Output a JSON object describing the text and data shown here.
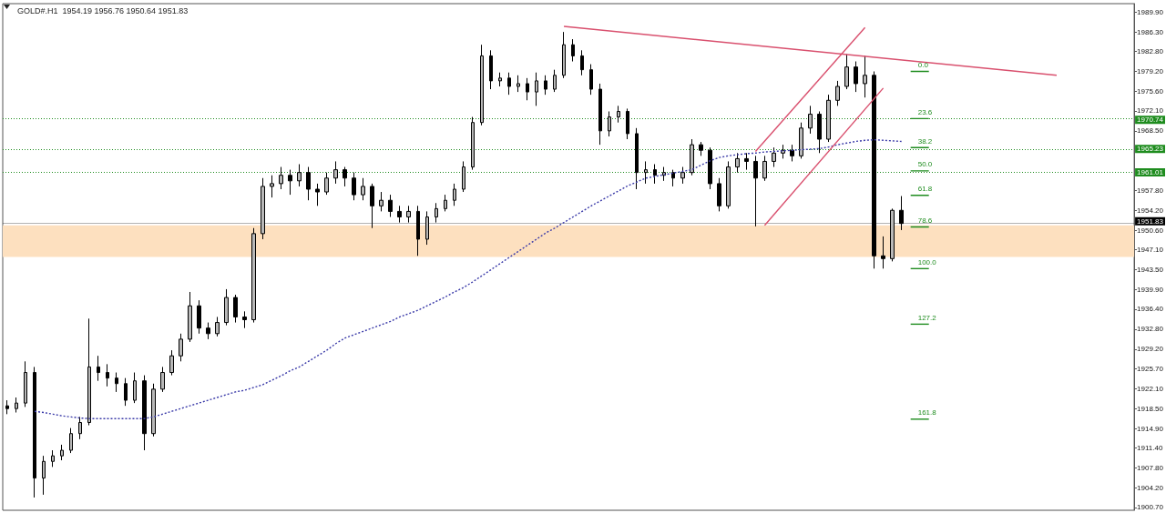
{
  "chart_data": {
    "type": "candlestick",
    "title": "GOLD#.H1  1954.19 1956.76 1950.64 1951.83",
    "categories": [
      null,
      null,
      null,
      null,
      null,
      null,
      null,
      null,
      null,
      null,
      null,
      null,
      null,
      null,
      null,
      null,
      null,
      null,
      null,
      null,
      null,
      null,
      null,
      null,
      null,
      null,
      null,
      null,
      null,
      null,
      null,
      null,
      null,
      null,
      null,
      null,
      null,
      null,
      null,
      null,
      null,
      null,
      null,
      null,
      null,
      null,
      null,
      null,
      null,
      null,
      null,
      null,
      null,
      null,
      null,
      null,
      null,
      null,
      null,
      null,
      null,
      null,
      null,
      null,
      null,
      null,
      null,
      null,
      null,
      null,
      null,
      null,
      null,
      null,
      null,
      null,
      null,
      null,
      null,
      null,
      null,
      null,
      null,
      null,
      null,
      null,
      null,
      null,
      null,
      null,
      null,
      null,
      null,
      null,
      null,
      null,
      null,
      null,
      null,
      null,
      null,
      null,
      null,
      null,
      null,
      null,
      null,
      null,
      null,
      null,
      null,
      null,
      null,
      null,
      null,
      null,
      null,
      null,
      null,
      null,
      null,
      null,
      null,
      null
    ],
    "ohlc": [
      [
        1919,
        1920,
        1917.5,
        1918.5
      ],
      [
        1918.5,
        1920.5,
        1917.8,
        1919.5
      ],
      [
        1919.5,
        1927,
        1918.8,
        1925
      ],
      [
        1925,
        1926,
        1902.5,
        1906
      ],
      [
        1906,
        1910,
        1903,
        1909
      ],
      [
        1909,
        1911,
        1908,
        1910
      ],
      [
        1910,
        1912,
        1909.2,
        1911
      ],
      [
        1911,
        1915,
        1910.5,
        1914
      ],
      [
        1914,
        1917,
        1913,
        1916
      ],
      [
        1916,
        1934.7,
        1915.5,
        1926
      ],
      [
        1926,
        1928,
        1923.5,
        1925
      ],
      [
        1925,
        1926.5,
        1922.5,
        1924
      ],
      [
        1924,
        1925,
        1921.5,
        1923
      ],
      [
        1923,
        1924,
        1919,
        1920
      ],
      [
        1920,
        1925,
        1919.5,
        1923.5
      ],
      [
        1923.5,
        1924.5,
        1911,
        1914
      ],
      [
        1914,
        1923,
        1913.5,
        1922
      ],
      [
        1922,
        1926,
        1921.5,
        1925
      ],
      [
        1925,
        1929,
        1924.5,
        1928
      ],
      [
        1928,
        1932,
        1927,
        1931
      ],
      [
        1931,
        1939.5,
        1930.5,
        1937
      ],
      [
        1937,
        1938,
        1932,
        1933
      ],
      [
        1933,
        1934,
        1931,
        1932
      ],
      [
        1932,
        1935,
        1931.5,
        1934
      ],
      [
        1934,
        1940,
        1933.5,
        1938.5
      ],
      [
        1938.5,
        1939,
        1934,
        1935
      ],
      [
        1935,
        1936,
        1933,
        1934.5
      ],
      [
        1934.5,
        1951,
        1934,
        1950
      ],
      [
        1950,
        1960,
        1949,
        1958.5
      ],
      [
        1958.5,
        1960.5,
        1956.5,
        1959
      ],
      [
        1959,
        1962,
        1958,
        1960.5
      ],
      [
        1960.5,
        1961.5,
        1957,
        1959.5
      ],
      [
        1959.5,
        1962.5,
        1958.5,
        1961
      ],
      [
        1961,
        1962,
        1956,
        1958
      ],
      [
        1958,
        1959,
        1955,
        1957.5
      ],
      [
        1957.5,
        1961,
        1957,
        1960
      ],
      [
        1960,
        1963,
        1959,
        1961.5
      ],
      [
        1961.5,
        1962,
        1958.5,
        1960
      ],
      [
        1960,
        1961,
        1956,
        1957
      ],
      [
        1957,
        1960,
        1956,
        1958.5
      ],
      [
        1958.5,
        1959,
        1951,
        1955
      ],
      [
        1955,
        1957.5,
        1954,
        1956
      ],
      [
        1956,
        1957,
        1953,
        1954
      ],
      [
        1954,
        1955,
        1952,
        1953
      ],
      [
        1953,
        1955,
        1952,
        1954
      ],
      [
        1954,
        1955,
        1946,
        1949
      ],
      [
        1949,
        1954,
        1948,
        1953
      ],
      [
        1953,
        1955.5,
        1952,
        1954.5
      ],
      [
        1954.5,
        1957,
        1954,
        1956
      ],
      [
        1956,
        1959,
        1955,
        1958
      ],
      [
        1958,
        1963,
        1957.5,
        1962
      ],
      [
        1962,
        1971,
        1961.5,
        1970
      ],
      [
        1970,
        1984,
        1969.5,
        1982
      ],
      [
        1982,
        1983,
        1976,
        1977.5
      ],
      [
        1977.5,
        1979,
        1976.5,
        1978
      ],
      [
        1978,
        1979,
        1975,
        1976.5
      ],
      [
        1976.5,
        1978.5,
        1975.5,
        1977
      ],
      [
        1977,
        1978,
        1974,
        1975.5
      ],
      [
        1975.5,
        1979,
        1973,
        1977.5
      ],
      [
        1977.5,
        1978.5,
        1975,
        1976
      ],
      [
        1976,
        1979.5,
        1975.5,
        1978.5
      ],
      [
        1978.5,
        1986.3,
        1978,
        1984
      ],
      [
        1984,
        1985,
        1981,
        1982
      ],
      [
        1982,
        1983,
        1978.5,
        1979.5
      ],
      [
        1979.5,
        1980.5,
        1975,
        1976
      ],
      [
        1976,
        1977,
        1966,
        1968.5
      ],
      [
        1968.5,
        1972,
        1967.5,
        1971
      ],
      [
        1971,
        1973,
        1970,
        1972
      ],
      [
        1972,
        1972.5,
        1967,
        1968
      ],
      [
        1968,
        1969,
        1958,
        1961
      ],
      [
        1961,
        1963,
        1959,
        1961.5
      ],
      [
        1961.5,
        1962.5,
        1959,
        1960.5
      ],
      [
        1960.5,
        1962,
        1959.5,
        1961
      ],
      [
        1961,
        1961.5,
        1958.5,
        1960
      ],
      [
        1960,
        1962,
        1959,
        1961
      ],
      [
        1961,
        1967,
        1960.5,
        1966
      ],
      [
        1966,
        1966.5,
        1964,
        1965
      ],
      [
        1965,
        1965.5,
        1958,
        1959
      ],
      [
        1959,
        1960,
        1954,
        1955
      ],
      [
        1955,
        1963,
        1954.5,
        1962
      ],
      [
        1962,
        1964.5,
        1961,
        1963.5
      ],
      [
        1963.5,
        1964.5,
        1961.5,
        1963
      ],
      [
        1963,
        1964,
        1951.3,
        1960
      ],
      [
        1960,
        1964,
        1959.5,
        1963
      ],
      [
        1963,
        1965.5,
        1962,
        1964.5
      ],
      [
        1964.5,
        1966,
        1963.5,
        1965
      ],
      [
        1965,
        1966,
        1963,
        1964
      ],
      [
        1964,
        1970,
        1963.5,
        1969
      ],
      [
        1969,
        1973,
        1968,
        1971.5
      ],
      [
        1971.5,
        1972,
        1964.5,
        1967
      ],
      [
        1967,
        1975,
        1966.5,
        1974
      ],
      [
        1974,
        1977.5,
        1973,
        1976.5
      ],
      [
        1976.5,
        1982.3,
        1976,
        1980
      ],
      [
        1980,
        1981,
        1975.5,
        1977
      ],
      [
        1977,
        1982,
        1974.5,
        1978.5
      ],
      [
        1978.5,
        1979.2,
        1943.7,
        1946
      ],
      [
        1946,
        1949.5,
        1943.7,
        1945.5
      ],
      [
        1945.5,
        1954.5,
        1945,
        1954.19
      ],
      [
        1954.19,
        1956.76,
        1950.64,
        1951.83
      ],
      null,
      null,
      null,
      null,
      null,
      null,
      null,
      null,
      null,
      null,
      null,
      null,
      null,
      null,
      null,
      null,
      null,
      null,
      null,
      null,
      null,
      null,
      null,
      null,
      null
    ],
    "series": [
      {
        "type": "line",
        "color": "#3a3aa8",
        "line_style": "dotted",
        "values": [
          null,
          null,
          null,
          1918.0,
          1917.8,
          1917.5,
          1917.2,
          1917.0,
          1916.8,
          1916.7,
          1916.7,
          1916.7,
          1916.7,
          1916.7,
          1916.7,
          1916.7,
          1917.0,
          1917.5,
          1918.0,
          1918.5,
          1919.0,
          1919.5,
          1920.0,
          1920.5,
          1921.0,
          1921.5,
          1921.8,
          1922.3,
          1922.8,
          1923.6,
          1924.4,
          1925.3,
          1926.0,
          1927.0,
          1928.0,
          1929.0,
          1930.2,
          1931.2,
          1931.8,
          1932.4,
          1933.0,
          1933.6,
          1934.2,
          1935.0,
          1935.6,
          1936.2,
          1937.0,
          1937.8,
          1938.6,
          1939.5,
          1940.3,
          1941.3,
          1942.4,
          1943.5,
          1944.6,
          1945.7,
          1946.8,
          1947.9,
          1949.0,
          1950.1,
          1951.0,
          1952.0,
          1953.0,
          1954.0,
          1955.0,
          1955.9,
          1956.8,
          1957.7,
          1958.6,
          1959.3,
          1960.0,
          1960.3,
          1960.6,
          1960.9,
          1961.2,
          1961.5,
          1962.3,
          1963.1,
          1963.7,
          1964.0,
          1964.2,
          1964.4,
          1964.5,
          1964.7,
          1964.8,
          1964.9,
          1965.0,
          1965.1,
          1965.2,
          1965.3,
          1965.6,
          1966.0,
          1966.3,
          1966.6,
          1966.8,
          1966.9,
          1966.8,
          1966.7,
          1966.6,
          null,
          null,
          null,
          null,
          null,
          null,
          null,
          null,
          null,
          null,
          null,
          null,
          null,
          null,
          null,
          null,
          null,
          null,
          null,
          null,
          null,
          null,
          null,
          null,
          null
        ]
      },
      {
        "type": "line",
        "color": "#d9506e",
        "line_style": "solid",
        "values": [
          null,
          null,
          null,
          null,
          null,
          null,
          null,
          null,
          null,
          null,
          null,
          null,
          null,
          null,
          null,
          null,
          null,
          null,
          null,
          null,
          null,
          null,
          null,
          null,
          null,
          null,
          null,
          null,
          null,
          null,
          null,
          null,
          null,
          null,
          null,
          null,
          null,
          null,
          null,
          null,
          null,
          null,
          null,
          null,
          null,
          null,
          null,
          null,
          null,
          null,
          null,
          null,
          null,
          null,
          null,
          null,
          null,
          null,
          null,
          null,
          null,
          1987.3,
          null,
          null,
          null,
          null,
          null,
          null,
          null,
          null,
          null,
          null,
          null,
          null,
          null,
          null,
          null,
          null,
          null,
          null,
          null,
          null,
          null,
          null,
          null,
          null,
          null,
          null,
          null,
          null,
          null,
          null,
          null,
          null,
          null,
          null,
          null,
          null,
          null,
          null,
          null,
          null,
          null,
          null,
          null,
          null,
          null,
          null,
          null,
          null,
          null,
          null,
          null,
          null,
          null,
          1978.5,
          null,
          null,
          null,
          null,
          null,
          null,
          null,
          null
        ]
      },
      {
        "type": "line",
        "color": "#d9506e",
        "line_style": "solid",
        "values": [
          null,
          null,
          null,
          null,
          null,
          null,
          null,
          null,
          null,
          null,
          null,
          null,
          null,
          null,
          null,
          null,
          null,
          null,
          null,
          null,
          null,
          null,
          null,
          null,
          null,
          null,
          null,
          null,
          null,
          null,
          null,
          null,
          null,
          null,
          null,
          null,
          null,
          null,
          null,
          null,
          null,
          null,
          null,
          null,
          null,
          null,
          null,
          null,
          null,
          null,
          null,
          null,
          null,
          null,
          null,
          null,
          null,
          null,
          null,
          null,
          null,
          null,
          null,
          null,
          null,
          null,
          null,
          null,
          null,
          null,
          null,
          null,
          null,
          null,
          null,
          null,
          null,
          null,
          null,
          null,
          null,
          null,
          1964.8,
          null,
          null,
          null,
          null,
          null,
          null,
          null,
          null,
          null,
          null,
          null,
          1987.1,
          null,
          null,
          null,
          null,
          null,
          null,
          null,
          null,
          null,
          null,
          null,
          null,
          null,
          null,
          null,
          null,
          null,
          null,
          null,
          null,
          null,
          null,
          null,
          null,
          null,
          null,
          null,
          null,
          null
        ]
      },
      {
        "type": "line",
        "color": "#d9506e",
        "line_style": "solid",
        "values": [
          null,
          null,
          null,
          null,
          null,
          null,
          null,
          null,
          null,
          null,
          null,
          null,
          null,
          null,
          null,
          null,
          null,
          null,
          null,
          null,
          null,
          null,
          null,
          null,
          null,
          null,
          null,
          null,
          null,
          null,
          null,
          null,
          null,
          null,
          null,
          null,
          null,
          null,
          null,
          null,
          null,
          null,
          null,
          null,
          null,
          null,
          null,
          null,
          null,
          null,
          null,
          null,
          null,
          null,
          null,
          null,
          null,
          null,
          null,
          null,
          null,
          null,
          null,
          null,
          null,
          null,
          null,
          null,
          null,
          null,
          null,
          null,
          null,
          null,
          null,
          null,
          null,
          null,
          null,
          null,
          null,
          null,
          null,
          1951.5,
          null,
          null,
          null,
          null,
          null,
          null,
          null,
          null,
          null,
          null,
          null,
          null,
          1976.2,
          null,
          null,
          null,
          null,
          null,
          null,
          null,
          null,
          null,
          null,
          null,
          null,
          null,
          null,
          null,
          null,
          null,
          null,
          null,
          null,
          null,
          null,
          null,
          null,
          null,
          null,
          null
        ]
      },
      {
        "type": "line",
        "name": "0.0",
        "color": "#1e8c1e",
        "line_style": "solid",
        "values": [
          null,
          null,
          null,
          null,
          null,
          null,
          null,
          null,
          null,
          null,
          null,
          null,
          null,
          null,
          null,
          null,
          null,
          null,
          null,
          null,
          null,
          null,
          null,
          null,
          null,
          null,
          null,
          null,
          null,
          null,
          null,
          null,
          null,
          null,
          null,
          null,
          null,
          null,
          null,
          null,
          null,
          null,
          null,
          null,
          null,
          null,
          null,
          null,
          null,
          null,
          null,
          null,
          null,
          null,
          null,
          null,
          null,
          null,
          null,
          null,
          null,
          null,
          null,
          null,
          null,
          null,
          null,
          null,
          null,
          null,
          null,
          null,
          null,
          null,
          null,
          null,
          null,
          null,
          null,
          null,
          null,
          null,
          null,
          null,
          null,
          null,
          null,
          null,
          null,
          null,
          null,
          null,
          null,
          null,
          null,
          null,
          null,
          null,
          null,
          1979.2,
          null,
          1979.2,
          null,
          null,
          null,
          null,
          null,
          null,
          null,
          null,
          null,
          null,
          null,
          null,
          null,
          null,
          null,
          null,
          null,
          null,
          null,
          null,
          null,
          null
        ]
      },
      {
        "type": "line",
        "name": "23.6",
        "color": "#1e8c1e",
        "line_style": "solid",
        "values": [
          null,
          null,
          null,
          null,
          null,
          null,
          null,
          null,
          null,
          null,
          null,
          null,
          null,
          null,
          null,
          null,
          null,
          null,
          null,
          null,
          null,
          null,
          null,
          null,
          null,
          null,
          null,
          null,
          null,
          null,
          null,
          null,
          null,
          null,
          null,
          null,
          null,
          null,
          null,
          null,
          null,
          null,
          null,
          null,
          null,
          null,
          null,
          null,
          null,
          null,
          null,
          null,
          null,
          null,
          null,
          null,
          null,
          null,
          null,
          null,
          null,
          null,
          null,
          null,
          null,
          null,
          null,
          null,
          null,
          null,
          null,
          null,
          null,
          null,
          null,
          null,
          null,
          null,
          null,
          null,
          null,
          null,
          null,
          null,
          null,
          null,
          null,
          null,
          null,
          null,
          null,
          null,
          null,
          null,
          null,
          null,
          null,
          null,
          null,
          1970.7,
          null,
          1970.7,
          null,
          null,
          null,
          null,
          null,
          null,
          null,
          null,
          null,
          null,
          null,
          null,
          null,
          null,
          null,
          null,
          null,
          null,
          null,
          null,
          null,
          null
        ]
      },
      {
        "type": "line",
        "name": "38.2",
        "color": "#1e8c1e",
        "line_style": "solid",
        "values": [
          null,
          null,
          null,
          null,
          null,
          null,
          null,
          null,
          null,
          null,
          null,
          null,
          null,
          null,
          null,
          null,
          null,
          null,
          null,
          null,
          null,
          null,
          null,
          null,
          null,
          null,
          null,
          null,
          null,
          null,
          null,
          null,
          null,
          null,
          null,
          null,
          null,
          null,
          null,
          null,
          null,
          null,
          null,
          null,
          null,
          null,
          null,
          null,
          null,
          null,
          null,
          null,
          null,
          null,
          null,
          null,
          null,
          null,
          null,
          null,
          null,
          null,
          null,
          null,
          null,
          null,
          null,
          null,
          null,
          null,
          null,
          null,
          null,
          null,
          null,
          null,
          null,
          null,
          null,
          null,
          null,
          null,
          null,
          null,
          null,
          null,
          null,
          null,
          null,
          null,
          null,
          null,
          null,
          null,
          null,
          null,
          null,
          null,
          null,
          1965.5,
          null,
          1965.5,
          null,
          null,
          null,
          null,
          null,
          null,
          null,
          null,
          null,
          null,
          null,
          null,
          null,
          null,
          null,
          null,
          null,
          null,
          null,
          null,
          null,
          null
        ]
      },
      {
        "type": "line",
        "name": "50.0",
        "color": "#1e8c1e",
        "line_style": "solid",
        "values": [
          null,
          null,
          null,
          null,
          null,
          null,
          null,
          null,
          null,
          null,
          null,
          null,
          null,
          null,
          null,
          null,
          null,
          null,
          null,
          null,
          null,
          null,
          null,
          null,
          null,
          null,
          null,
          null,
          null,
          null,
          null,
          null,
          null,
          null,
          null,
          null,
          null,
          null,
          null,
          null,
          null,
          null,
          null,
          null,
          null,
          null,
          null,
          null,
          null,
          null,
          null,
          null,
          null,
          null,
          null,
          null,
          null,
          null,
          null,
          null,
          null,
          null,
          null,
          null,
          null,
          null,
          null,
          null,
          null,
          null,
          null,
          null,
          null,
          null,
          null,
          null,
          null,
          null,
          null,
          null,
          null,
          null,
          null,
          null,
          null,
          null,
          null,
          null,
          null,
          null,
          null,
          null,
          null,
          null,
          null,
          null,
          null,
          null,
          null,
          1961.3,
          null,
          1961.3,
          null,
          null,
          null,
          null,
          null,
          null,
          null,
          null,
          null,
          null,
          null,
          null,
          null,
          null,
          null,
          null,
          null,
          null,
          null,
          null,
          null,
          null
        ]
      },
      {
        "type": "line",
        "name": "61.8",
        "color": "#1e8c1e",
        "line_style": "solid",
        "values": [
          null,
          null,
          null,
          null,
          null,
          null,
          null,
          null,
          null,
          null,
          null,
          null,
          null,
          null,
          null,
          null,
          null,
          null,
          null,
          null,
          null,
          null,
          null,
          null,
          null,
          null,
          null,
          null,
          null,
          null,
          null,
          null,
          null,
          null,
          null,
          null,
          null,
          null,
          null,
          null,
          null,
          null,
          null,
          null,
          null,
          null,
          null,
          null,
          null,
          null,
          null,
          null,
          null,
          null,
          null,
          null,
          null,
          null,
          null,
          null,
          null,
          null,
          null,
          null,
          null,
          null,
          null,
          null,
          null,
          null,
          null,
          null,
          null,
          null,
          null,
          null,
          null,
          null,
          null,
          null,
          null,
          null,
          null,
          null,
          null,
          null,
          null,
          null,
          null,
          null,
          null,
          null,
          null,
          null,
          null,
          null,
          null,
          null,
          null,
          1956.9,
          null,
          1956.9,
          null,
          null,
          null,
          null,
          null,
          null,
          null,
          null,
          null,
          null,
          null,
          null,
          null,
          null,
          null,
          null,
          null,
          null,
          null,
          null,
          null,
          null
        ]
      },
      {
        "type": "line",
        "name": "78.6",
        "color": "#1e8c1e",
        "line_style": "solid",
        "values": [
          null,
          null,
          null,
          null,
          null,
          null,
          null,
          null,
          null,
          null,
          null,
          null,
          null,
          null,
          null,
          null,
          null,
          null,
          null,
          null,
          null,
          null,
          null,
          null,
          null,
          null,
          null,
          null,
          null,
          null,
          null,
          null,
          null,
          null,
          null,
          null,
          null,
          null,
          null,
          null,
          null,
          null,
          null,
          null,
          null,
          null,
          null,
          null,
          null,
          null,
          null,
          null,
          null,
          null,
          null,
          null,
          null,
          null,
          null,
          null,
          null,
          null,
          null,
          null,
          null,
          null,
          null,
          null,
          null,
          null,
          null,
          null,
          null,
          null,
          null,
          null,
          null,
          null,
          null,
          null,
          null,
          null,
          null,
          null,
          null,
          null,
          null,
          null,
          null,
          null,
          null,
          null,
          null,
          null,
          null,
          null,
          null,
          null,
          null,
          1951.2,
          null,
          1951.2,
          null,
          null,
          null,
          null,
          null,
          null,
          null,
          null,
          null,
          null,
          null,
          null,
          null,
          null,
          null,
          null,
          null,
          null,
          null,
          null,
          null,
          null
        ]
      },
      {
        "type": "line",
        "name": "100.0",
        "color": "#1e8c1e",
        "line_style": "solid",
        "values": [
          null,
          null,
          null,
          null,
          null,
          null,
          null,
          null,
          null,
          null,
          null,
          null,
          null,
          null,
          null,
          null,
          null,
          null,
          null,
          null,
          null,
          null,
          null,
          null,
          null,
          null,
          null,
          null,
          null,
          null,
          null,
          null,
          null,
          null,
          null,
          null,
          null,
          null,
          null,
          null,
          null,
          null,
          null,
          null,
          null,
          null,
          null,
          null,
          null,
          null,
          null,
          null,
          null,
          null,
          null,
          null,
          null,
          null,
          null,
          null,
          null,
          null,
          null,
          null,
          null,
          null,
          null,
          null,
          null,
          null,
          null,
          null,
          null,
          null,
          null,
          null,
          null,
          null,
          null,
          null,
          null,
          null,
          null,
          null,
          null,
          null,
          null,
          null,
          null,
          null,
          null,
          null,
          null,
          null,
          null,
          null,
          null,
          null,
          null,
          1943.7,
          null,
          1943.7,
          null,
          null,
          null,
          null,
          null,
          null,
          null,
          null,
          null,
          null,
          null,
          null,
          null,
          null,
          null,
          null,
          null,
          null,
          null,
          null,
          null,
          null
        ]
      },
      {
        "type": "line",
        "name": "127.2",
        "color": "#1e8c1e",
        "line_style": "solid",
        "values": [
          null,
          null,
          null,
          null,
          null,
          null,
          null,
          null,
          null,
          null,
          null,
          null,
          null,
          null,
          null,
          null,
          null,
          null,
          null,
          null,
          null,
          null,
          null,
          null,
          null,
          null,
          null,
          null,
          null,
          null,
          null,
          null,
          null,
          null,
          null,
          null,
          null,
          null,
          null,
          null,
          null,
          null,
          null,
          null,
          null,
          null,
          null,
          null,
          null,
          null,
          null,
          null,
          null,
          null,
          null,
          null,
          null,
          null,
          null,
          null,
          null,
          null,
          null,
          null,
          null,
          null,
          null,
          null,
          null,
          null,
          null,
          null,
          null,
          null,
          null,
          null,
          null,
          null,
          null,
          null,
          null,
          null,
          null,
          null,
          null,
          null,
          null,
          null,
          null,
          null,
          null,
          null,
          null,
          null,
          null,
          null,
          null,
          null,
          null,
          1933.7,
          null,
          1933.7,
          null,
          null,
          null,
          null,
          null,
          null,
          null,
          null,
          null,
          null,
          null,
          null,
          null,
          null,
          null,
          null,
          null,
          null,
          null,
          null,
          null,
          null
        ]
      },
      {
        "type": "line",
        "name": "161.8",
        "color": "#1e8c1e",
        "line_style": "solid",
        "values": [
          null,
          null,
          null,
          null,
          null,
          null,
          null,
          null,
          null,
          null,
          null,
          null,
          null,
          null,
          null,
          null,
          null,
          null,
          null,
          null,
          null,
          null,
          null,
          null,
          null,
          null,
          null,
          null,
          null,
          null,
          null,
          null,
          null,
          null,
          null,
          null,
          null,
          null,
          null,
          null,
          null,
          null,
          null,
          null,
          null,
          null,
          null,
          null,
          null,
          null,
          null,
          null,
          null,
          null,
          null,
          null,
          null,
          null,
          null,
          null,
          null,
          null,
          null,
          null,
          null,
          null,
          null,
          null,
          null,
          null,
          null,
          null,
          null,
          null,
          null,
          null,
          null,
          null,
          null,
          null,
          null,
          null,
          null,
          null,
          null,
          null,
          null,
          null,
          null,
          null,
          null,
          null,
          null,
          null,
          null,
          null,
          null,
          null,
          null,
          1916.6,
          null,
          1916.6,
          null,
          null,
          null,
          null,
          null,
          null,
          null,
          null,
          null,
          null,
          null,
          null,
          null,
          null,
          null,
          null,
          null,
          null,
          null,
          null,
          null,
          null
        ]
      }
    ],
    "ylim": [
      1900.2,
      1991.4
    ],
    "yticks": [
      {
        "value": 1989.9,
        "label": "1989.90"
      },
      {
        "value": 1986.3,
        "label": "1986.30"
      },
      {
        "value": 1982.8,
        "label": "1982.80"
      },
      {
        "value": 1979.2,
        "label": "1979.20"
      },
      {
        "value": 1975.6,
        "label": "1975.60"
      },
      {
        "value": 1972.1,
        "label": "1972.10"
      },
      {
        "value": 1968.5,
        "label": "1968.50"
      },
      {
        "value": 1957.8,
        "label": "1957.80"
      },
      {
        "value": 1954.2,
        "label": "1954.20"
      },
      {
        "value": 1950.6,
        "label": "1950.60"
      },
      {
        "value": 1947.1,
        "label": "1947.10"
      },
      {
        "value": 1943.5,
        "label": "1943.50"
      },
      {
        "value": 1939.9,
        "label": "1939.90"
      },
      {
        "value": 1936.4,
        "label": "1936.40"
      },
      {
        "value": 1932.8,
        "label": "1932.80"
      },
      {
        "value": 1929.2,
        "label": "1929.20"
      },
      {
        "value": 1925.7,
        "label": "1925.70"
      },
      {
        "value": 1922.1,
        "label": "1922.10"
      },
      {
        "value": 1918.5,
        "label": "1918.50"
      },
      {
        "value": 1914.9,
        "label": "1914.90"
      },
      {
        "value": 1911.4,
        "label": "1911.40"
      },
      {
        "value": 1907.8,
        "label": "1907.80"
      },
      {
        "value": 1904.2,
        "label": "1904.20"
      },
      {
        "value": 1900.7,
        "label": "1900.70"
      }
    ],
    "ref_lines": [
      {
        "axis": "y",
        "value": 1970.74,
        "label": "1970.74",
        "color": "#1e8c1e",
        "line_style": "dotted"
      },
      {
        "axis": "y",
        "value": 1965.23,
        "label": "1965.23",
        "color": "#1e8c1e",
        "line_style": "dotted"
      },
      {
        "axis": "y",
        "value": 1961.01,
        "label": "1961.01",
        "color": "#1e8c1e",
        "line_style": "dotted"
      },
      {
        "axis": "y",
        "value": 1951.83,
        "label": "1951.83",
        "color": "#000000",
        "line_style": "solid"
      }
    ],
    "bands": [
      {
        "axis": "y",
        "from": 1945.8,
        "to": 1951.5,
        "color": "#fde0bf"
      }
    ],
    "grid": false,
    "tick_labels": "y"
  }
}
